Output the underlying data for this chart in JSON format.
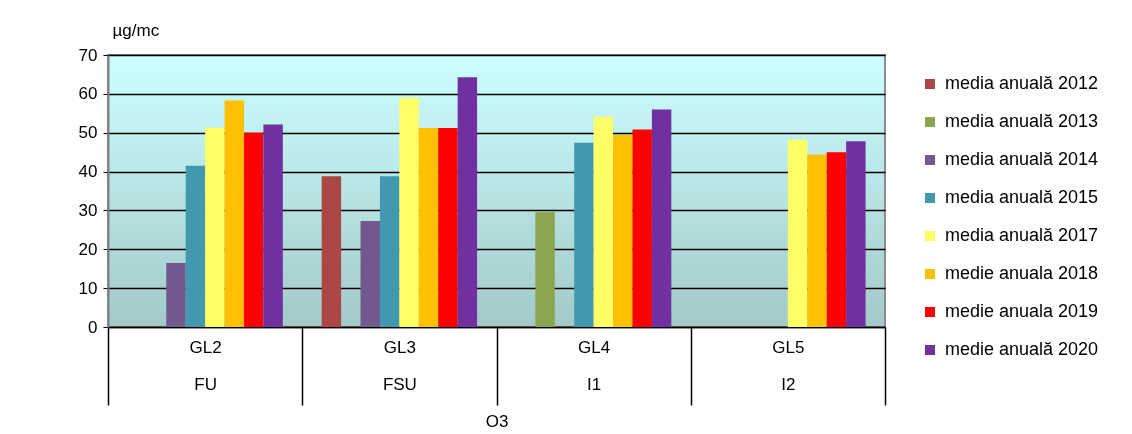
{
  "chart_data": {
    "type": "bar",
    "categories": [
      "GL2\nFU",
      "GL3\nFSU",
      "GL4\nI1",
      "GL5\nI2"
    ],
    "xlabel": "O3",
    "ylabel": "µg/mc",
    "ylim": [
      0,
      70
    ],
    "yticks": [
      0,
      10,
      20,
      30,
      40,
      50,
      60,
      70
    ],
    "grid": "y",
    "legend": "right",
    "series": [
      {
        "name": "media anuală 2012",
        "color": "#aa4643",
        "values": [
          null,
          38.8,
          null,
          null
        ]
      },
      {
        "name": "media anuală 2013",
        "color": "#89a54e",
        "values": [
          null,
          null,
          29.5,
          null
        ]
      },
      {
        "name": "media anuală 2014",
        "color": "#71588f",
        "values": [
          16.5,
          27.3,
          null,
          null
        ]
      },
      {
        "name": "media anuală 2015",
        "color": "#4198af",
        "values": [
          41.5,
          38.8,
          47.4,
          null
        ]
      },
      {
        "name": "media anuală 2017",
        "color": "#ffff66",
        "values": [
          51.3,
          59.0,
          54.1,
          48.2
        ]
      },
      {
        "name": "medie anuala 2018",
        "color": "#ffc000",
        "values": [
          58.3,
          51.2,
          49.4,
          44.4
        ]
      },
      {
        "name": "medie anuala 2019",
        "color": "#ff0000",
        "values": [
          50.0,
          51.2,
          50.8,
          45.0
        ]
      },
      {
        "name": "medie anuală 2020",
        "color": "#7030a0",
        "values": [
          52.1,
          64.3,
          56.0,
          47.8
        ]
      }
    ]
  }
}
